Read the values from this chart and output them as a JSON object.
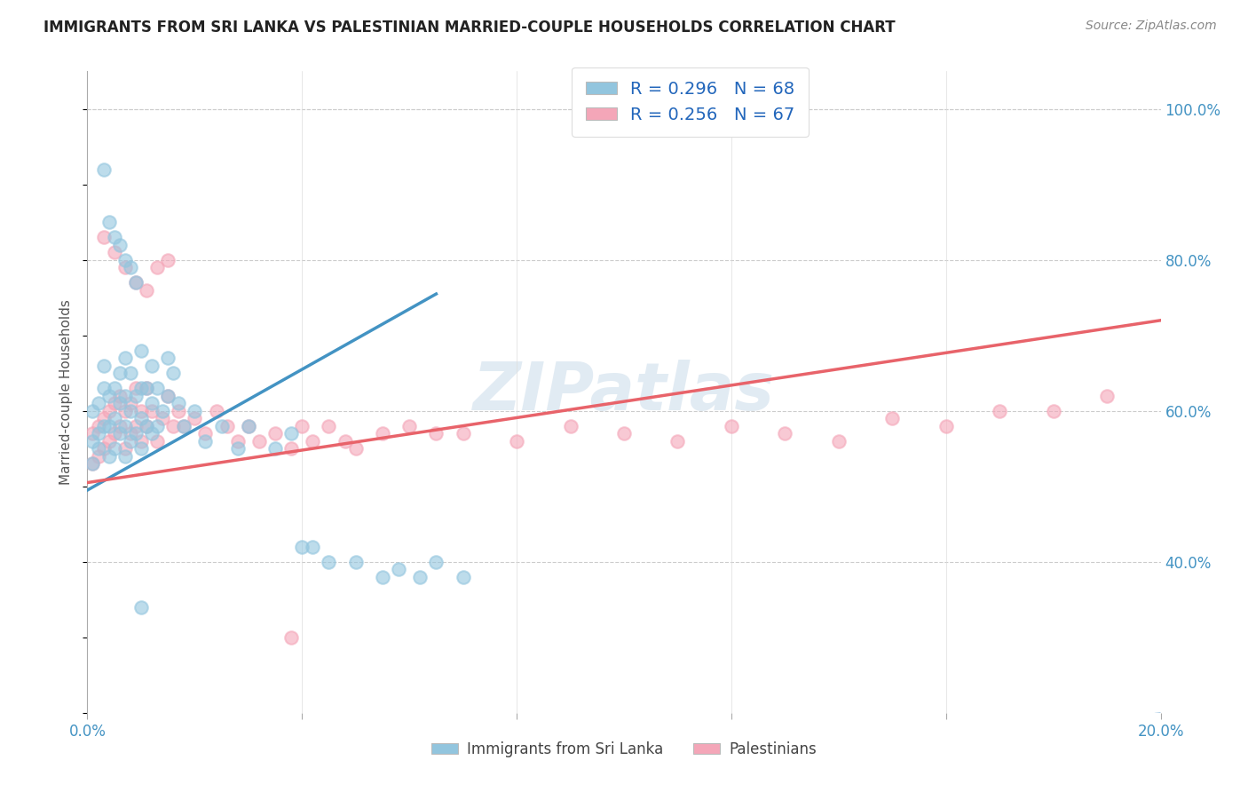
{
  "title": "IMMIGRANTS FROM SRI LANKA VS PALESTINIAN MARRIED-COUPLE HOUSEHOLDS CORRELATION CHART",
  "source": "Source: ZipAtlas.com",
  "ylabel": "Married-couple Households",
  "legend_label_1": "R = 0.296   N = 68",
  "legend_label_2": "R = 0.256   N = 67",
  "legend_footer_1": "Immigrants from Sri Lanka",
  "legend_footer_2": "Palestinians",
  "color_blue": "#92C5DE",
  "color_pink": "#F4A6B8",
  "color_line_blue": "#4393C3",
  "color_line_pink": "#E8636A",
  "color_diag": "#AACBE5",
  "watermark": "ZIPatlas",
  "xlim": [
    0.0,
    0.2
  ],
  "ylim": [
    0.2,
    1.05
  ],
  "sl_trend_x0": 0.0,
  "sl_trend_y0": 0.495,
  "sl_trend_x1": 0.065,
  "sl_trend_y1": 0.755,
  "pal_trend_x0": 0.0,
  "pal_trend_y0": 0.505,
  "pal_trend_x1": 0.2,
  "pal_trend_y1": 0.72,
  "sl_x": [
    0.001,
    0.001,
    0.001,
    0.002,
    0.002,
    0.002,
    0.003,
    0.003,
    0.003,
    0.004,
    0.004,
    0.004,
    0.005,
    0.005,
    0.005,
    0.006,
    0.006,
    0.006,
    0.007,
    0.007,
    0.007,
    0.007,
    0.008,
    0.008,
    0.008,
    0.009,
    0.009,
    0.01,
    0.01,
    0.01,
    0.01,
    0.011,
    0.011,
    0.012,
    0.012,
    0.012,
    0.013,
    0.013,
    0.014,
    0.015,
    0.015,
    0.016,
    0.017,
    0.018,
    0.02,
    0.022,
    0.025,
    0.028,
    0.03,
    0.035,
    0.038,
    0.04,
    0.042,
    0.045,
    0.05,
    0.055,
    0.058,
    0.062,
    0.065,
    0.07,
    0.003,
    0.004,
    0.005,
    0.006,
    0.007,
    0.008,
    0.009,
    0.01
  ],
  "sl_y": [
    0.53,
    0.56,
    0.6,
    0.55,
    0.57,
    0.61,
    0.58,
    0.63,
    0.66,
    0.54,
    0.58,
    0.62,
    0.55,
    0.59,
    0.63,
    0.57,
    0.61,
    0.65,
    0.54,
    0.58,
    0.62,
    0.67,
    0.56,
    0.6,
    0.65,
    0.57,
    0.62,
    0.55,
    0.59,
    0.63,
    0.68,
    0.58,
    0.63,
    0.57,
    0.61,
    0.66,
    0.58,
    0.63,
    0.6,
    0.62,
    0.67,
    0.65,
    0.61,
    0.58,
    0.6,
    0.56,
    0.58,
    0.55,
    0.58,
    0.55,
    0.57,
    0.42,
    0.42,
    0.4,
    0.4,
    0.38,
    0.39,
    0.38,
    0.4,
    0.38,
    0.92,
    0.85,
    0.83,
    0.82,
    0.8,
    0.79,
    0.77,
    0.34
  ],
  "pal_x": [
    0.001,
    0.001,
    0.002,
    0.002,
    0.003,
    0.003,
    0.004,
    0.004,
    0.005,
    0.005,
    0.006,
    0.006,
    0.007,
    0.007,
    0.008,
    0.008,
    0.009,
    0.009,
    0.01,
    0.01,
    0.011,
    0.011,
    0.012,
    0.013,
    0.014,
    0.015,
    0.016,
    0.017,
    0.018,
    0.02,
    0.022,
    0.024,
    0.026,
    0.028,
    0.03,
    0.032,
    0.035,
    0.038,
    0.04,
    0.042,
    0.045,
    0.048,
    0.05,
    0.055,
    0.06,
    0.065,
    0.07,
    0.08,
    0.09,
    0.1,
    0.11,
    0.12,
    0.13,
    0.14,
    0.15,
    0.16,
    0.17,
    0.18,
    0.19,
    0.003,
    0.005,
    0.007,
    0.009,
    0.011,
    0.013,
    0.015,
    0.038
  ],
  "pal_y": [
    0.53,
    0.57,
    0.54,
    0.58,
    0.55,
    0.59,
    0.56,
    0.6,
    0.57,
    0.61,
    0.58,
    0.62,
    0.55,
    0.6,
    0.57,
    0.61,
    0.58,
    0.63,
    0.56,
    0.6,
    0.58,
    0.63,
    0.6,
    0.56,
    0.59,
    0.62,
    0.58,
    0.6,
    0.58,
    0.59,
    0.57,
    0.6,
    0.58,
    0.56,
    0.58,
    0.56,
    0.57,
    0.55,
    0.58,
    0.56,
    0.58,
    0.56,
    0.55,
    0.57,
    0.58,
    0.57,
    0.57,
    0.56,
    0.58,
    0.57,
    0.56,
    0.58,
    0.57,
    0.56,
    0.59,
    0.58,
    0.6,
    0.6,
    0.62,
    0.83,
    0.81,
    0.79,
    0.77,
    0.76,
    0.79,
    0.8,
    0.3
  ]
}
